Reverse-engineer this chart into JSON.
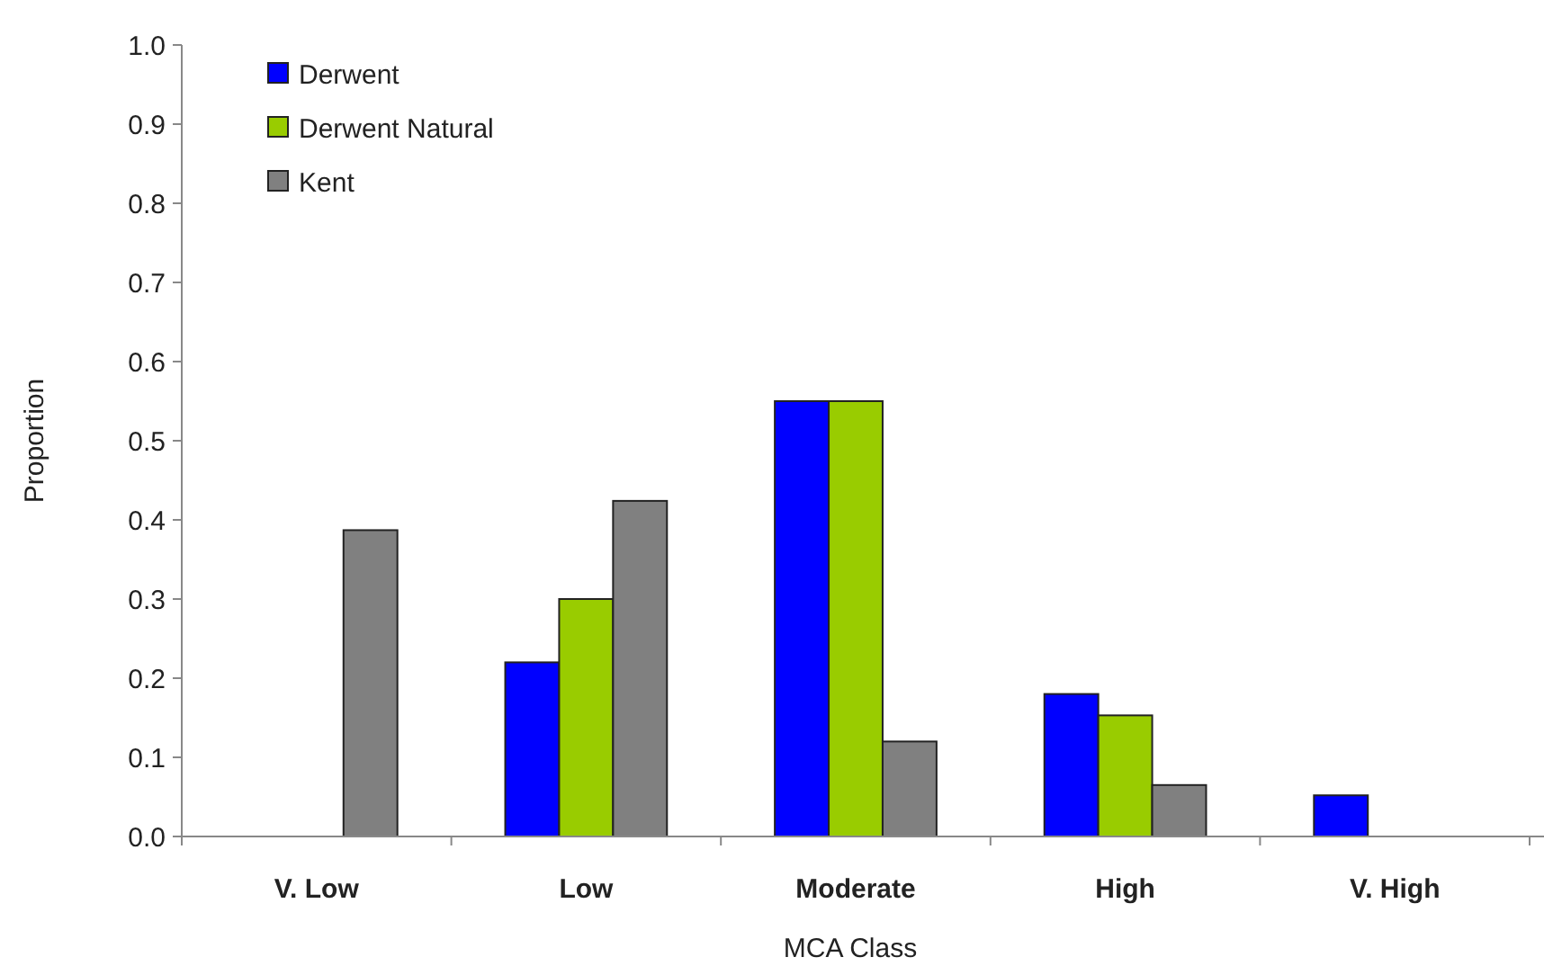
{
  "chart_data": {
    "type": "bar",
    "xlabel": "MCA Class",
    "ylabel": "Proportion",
    "categories": [
      "V. Low",
      "Low",
      "Moderate",
      "High",
      "V. High"
    ],
    "series": [
      {
        "name": "Derwent",
        "color": "#0000ff",
        "values": [
          0,
          0.22,
          0.55,
          0.18,
          0.052
        ]
      },
      {
        "name": "Derwent Natural",
        "color": "#99cc00",
        "values": [
          0,
          0.3,
          0.55,
          0.153,
          0
        ]
      },
      {
        "name": "Kent",
        "color": "#808080",
        "values": [
          0.387,
          0.424,
          0.12,
          0.065,
          0
        ]
      }
    ],
    "ylim": [
      0,
      1
    ],
    "yticks": [
      {
        "value": 0,
        "label": "0.0"
      },
      {
        "value": 0.1,
        "label": "0.1"
      },
      {
        "value": 0.2,
        "label": "0.2"
      },
      {
        "value": 0.3,
        "label": "0.3"
      },
      {
        "value": 0.4,
        "label": "0.4"
      },
      {
        "value": 0.5,
        "label": "0.5"
      },
      {
        "value": 0.6,
        "label": "0.6"
      },
      {
        "value": 0.7,
        "label": "0.7"
      },
      {
        "value": 0.8,
        "label": "0.8"
      },
      {
        "value": 0.9,
        "label": "0.9"
      },
      {
        "value": 1,
        "label": "1.0"
      }
    ],
    "grid": false,
    "legend": "top left"
  }
}
